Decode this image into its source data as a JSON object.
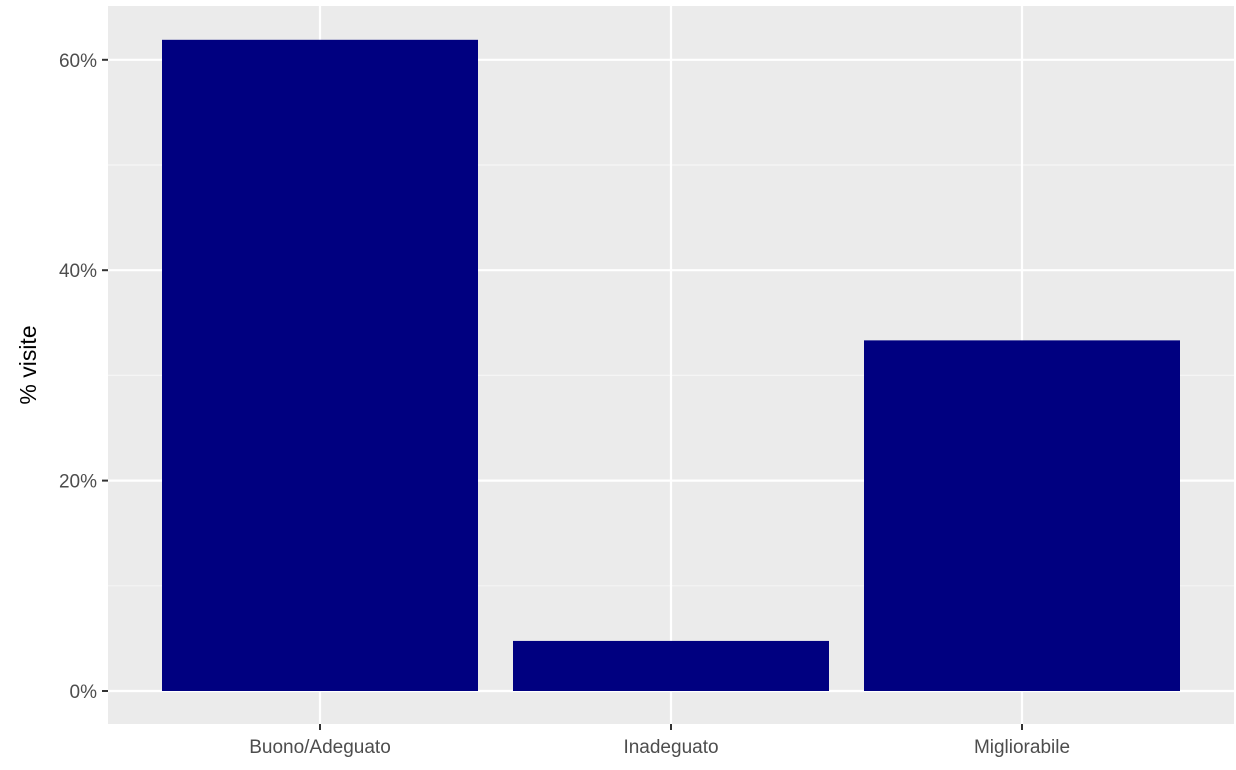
{
  "chart_data": {
    "type": "bar",
    "title": "",
    "xlabel": "",
    "ylabel": "% visite",
    "categories": [
      "Buono/Adeguato",
      "Inadeguato",
      "Migliorabile"
    ],
    "values": [
      61.9,
      4.76,
      33.33
    ],
    "ylim": [
      0,
      65
    ],
    "yticks": [
      0,
      20,
      40,
      60
    ],
    "ytick_labels": [
      "0%",
      "20%",
      "40%",
      "60%"
    ],
    "grid": true,
    "legend": "none",
    "colors": {
      "bar": "#000080",
      "panel_background": "#ebebeb",
      "grid_major": "#ffffff",
      "grid_minor": "#f5f5f5",
      "axis_text": "#4d4d4d",
      "tick": "#333333"
    }
  }
}
